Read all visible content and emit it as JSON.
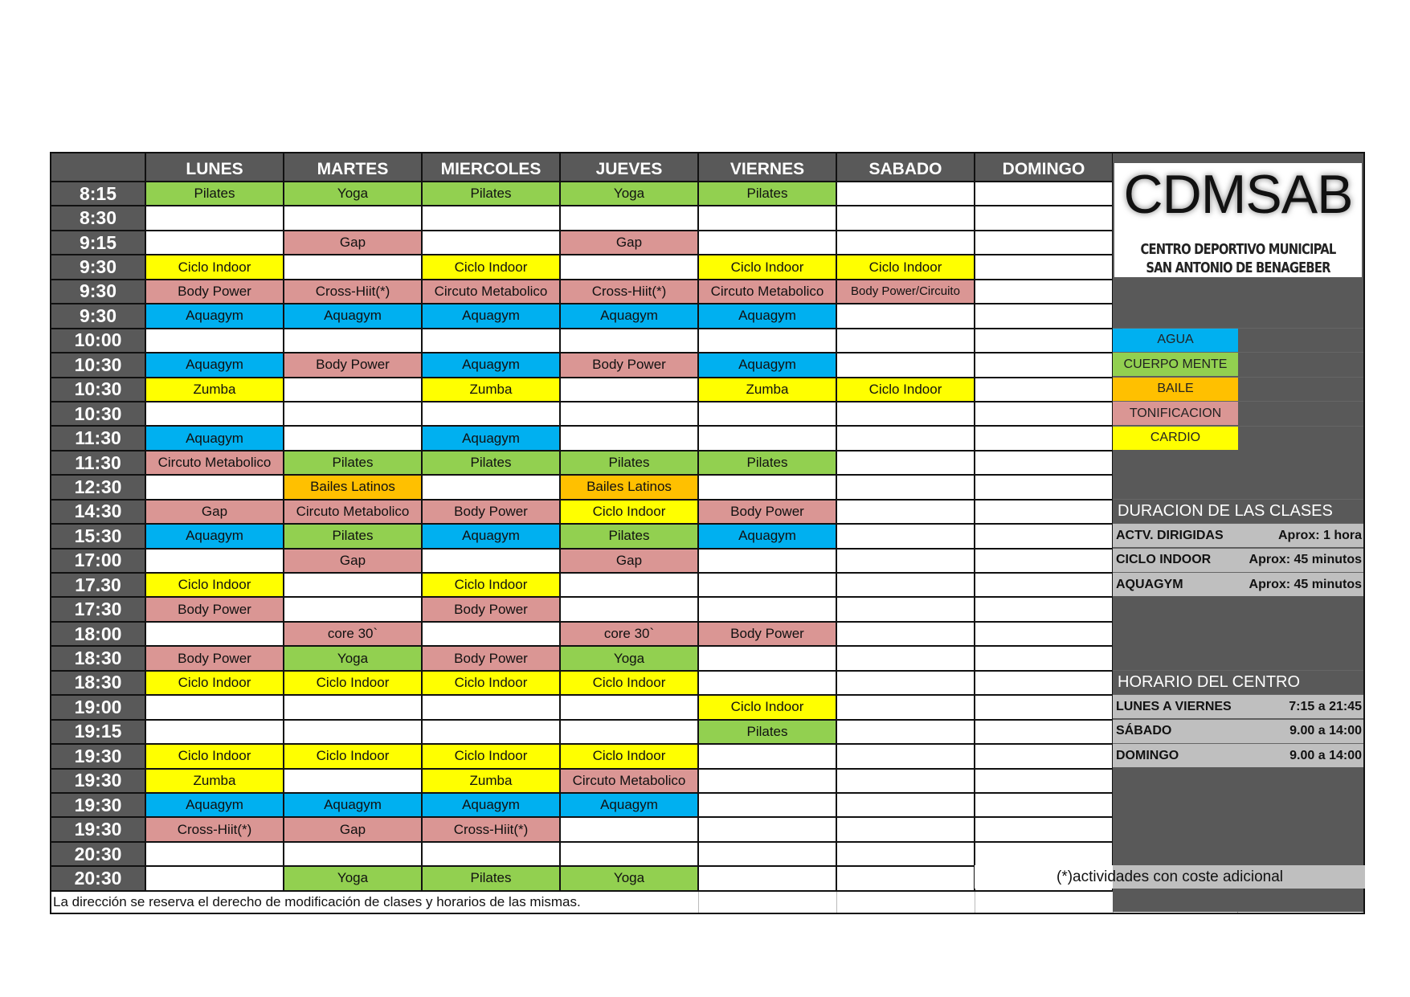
{
  "header": {
    "days": [
      "LUNES",
      "MARTES",
      "MIERCOLES",
      "JUEVES",
      "VIERNES",
      "SABADO",
      "DOMINGO"
    ]
  },
  "categories": {
    "A": {
      "label": "AGUA",
      "color": "#00b0f0"
    },
    "C": {
      "label": "CUERPO MENTE",
      "color": "#92d050"
    },
    "B": {
      "label": "BAILE",
      "color": "#ffc000"
    },
    "T": {
      "label": "TONIFICACION",
      "color": "#da9694"
    },
    "K": {
      "label": "CARDIO",
      "color": "#ffff00"
    }
  },
  "legend_order": [
    "A",
    "C",
    "B",
    "T",
    "K"
  ],
  "schedule": [
    {
      "time": "8:15",
      "cells": [
        [
          "Pilates",
          "C"
        ],
        [
          "Yoga",
          "C"
        ],
        [
          "Pilates",
          "C"
        ],
        [
          "Yoga",
          "C"
        ],
        [
          "Pilates",
          "C"
        ],
        [
          "",
          ""
        ],
        [
          "",
          ""
        ]
      ]
    },
    {
      "time": "8:30",
      "cells": [
        [
          "",
          ""
        ],
        [
          "",
          ""
        ],
        [
          "",
          ""
        ],
        [
          "",
          ""
        ],
        [
          "",
          ""
        ],
        [
          "",
          ""
        ],
        [
          "",
          ""
        ]
      ]
    },
    {
      "time": "9:15",
      "cells": [
        [
          "",
          ""
        ],
        [
          "Gap",
          "T"
        ],
        [
          "",
          ""
        ],
        [
          "Gap",
          "T"
        ],
        [
          "",
          ""
        ],
        [
          "",
          ""
        ],
        [
          "",
          ""
        ]
      ]
    },
    {
      "time": "9:30",
      "cells": [
        [
          "Ciclo Indoor",
          "K"
        ],
        [
          "",
          ""
        ],
        [
          "Ciclo Indoor",
          "K"
        ],
        [
          "",
          ""
        ],
        [
          "Ciclo Indoor",
          "K"
        ],
        [
          "Ciclo Indoor",
          "K"
        ],
        [
          "",
          ""
        ]
      ]
    },
    {
      "time": "9:30",
      "cells": [
        [
          "Body Power",
          "T"
        ],
        [
          "Cross-Hiit(*)",
          "T"
        ],
        [
          "Circuto Metabolico",
          "T"
        ],
        [
          "Cross-Hiit(*)",
          "T"
        ],
        [
          "Circuto Metabolico",
          "T"
        ],
        [
          "Body Power/Circuito",
          "T"
        ],
        [
          "",
          ""
        ]
      ]
    },
    {
      "time": "9:30",
      "cells": [
        [
          "Aquagym",
          "A"
        ],
        [
          "Aquagym",
          "A"
        ],
        [
          "Aquagym",
          "A"
        ],
        [
          "Aquagym",
          "A"
        ],
        [
          "Aquagym",
          "A"
        ],
        [
          "",
          ""
        ],
        [
          "",
          ""
        ]
      ]
    },
    {
      "time": "10:00",
      "cells": [
        [
          "",
          ""
        ],
        [
          "",
          ""
        ],
        [
          "",
          ""
        ],
        [
          "",
          ""
        ],
        [
          "",
          ""
        ],
        [
          "",
          ""
        ],
        [
          "",
          ""
        ]
      ]
    },
    {
      "time": "10:30",
      "cells": [
        [
          "Aquagym",
          "A"
        ],
        [
          "Body Power",
          "T"
        ],
        [
          "Aquagym",
          "A"
        ],
        [
          "Body Power",
          "T"
        ],
        [
          "Aquagym",
          "A"
        ],
        [
          "",
          ""
        ],
        [
          "",
          ""
        ]
      ]
    },
    {
      "time": "10:30",
      "cells": [
        [
          "Zumba",
          "K"
        ],
        [
          "",
          ""
        ],
        [
          "Zumba",
          "K"
        ],
        [
          "",
          ""
        ],
        [
          "Zumba",
          "K"
        ],
        [
          "Ciclo Indoor",
          "K"
        ],
        [
          "",
          ""
        ]
      ]
    },
    {
      "time": "10:30",
      "cells": [
        [
          "",
          ""
        ],
        [
          "",
          ""
        ],
        [
          "",
          ""
        ],
        [
          "",
          ""
        ],
        [
          "",
          ""
        ],
        [
          "",
          ""
        ],
        [
          "",
          ""
        ]
      ]
    },
    {
      "time": "11:30",
      "cells": [
        [
          "Aquagym",
          "A"
        ],
        [
          "",
          ""
        ],
        [
          "Aquagym",
          "A"
        ],
        [
          "",
          ""
        ],
        [
          "",
          ""
        ],
        [
          "",
          ""
        ],
        [
          "",
          ""
        ]
      ]
    },
    {
      "time": "11:30",
      "cells": [
        [
          "Circuto Metabolico",
          "T"
        ],
        [
          "Pilates",
          "C"
        ],
        [
          "Pilates",
          "C"
        ],
        [
          "Pilates",
          "C"
        ],
        [
          "Pilates",
          "C"
        ],
        [
          "",
          ""
        ],
        [
          "",
          ""
        ]
      ]
    },
    {
      "time": "12:30",
      "cells": [
        [
          "",
          ""
        ],
        [
          "Bailes Latinos",
          "B"
        ],
        [
          "",
          ""
        ],
        [
          "Bailes Latinos",
          "B"
        ],
        [
          "",
          ""
        ],
        [
          "",
          ""
        ],
        [
          "",
          ""
        ]
      ]
    },
    {
      "time": "14:30",
      "cells": [
        [
          "Gap",
          "T"
        ],
        [
          "Circuto Metabolico",
          "T"
        ],
        [
          "Body Power",
          "T"
        ],
        [
          "Ciclo Indoor",
          "K"
        ],
        [
          "Body Power",
          "T"
        ],
        [
          "",
          ""
        ],
        [
          "",
          ""
        ]
      ]
    },
    {
      "time": "15:30",
      "cells": [
        [
          "Aquagym",
          "A"
        ],
        [
          "Pilates",
          "C"
        ],
        [
          "Aquagym",
          "A"
        ],
        [
          "Pilates",
          "C"
        ],
        [
          "Aquagym",
          "A"
        ],
        [
          "",
          ""
        ],
        [
          "",
          ""
        ]
      ]
    },
    {
      "time": "17:00",
      "cells": [
        [
          "",
          ""
        ],
        [
          "Gap",
          "T"
        ],
        [
          "",
          ""
        ],
        [
          "Gap",
          "T"
        ],
        [
          "",
          ""
        ],
        [
          "",
          ""
        ],
        [
          "",
          ""
        ]
      ]
    },
    {
      "time": "17.30",
      "cells": [
        [
          "Ciclo Indoor",
          "K"
        ],
        [
          "",
          ""
        ],
        [
          "Ciclo Indoor",
          "K"
        ],
        [
          "",
          ""
        ],
        [
          "",
          ""
        ],
        [
          "",
          ""
        ],
        [
          "",
          ""
        ]
      ]
    },
    {
      "time": "17:30",
      "cells": [
        [
          "Body Power",
          "T"
        ],
        [
          "",
          ""
        ],
        [
          "Body Power",
          "T"
        ],
        [
          "",
          ""
        ],
        [
          "",
          ""
        ],
        [
          "",
          ""
        ],
        [
          "",
          ""
        ]
      ]
    },
    {
      "time": "18:00",
      "cells": [
        [
          "",
          ""
        ],
        [
          "core 30`",
          "T"
        ],
        [
          "",
          ""
        ],
        [
          "core 30`",
          "T"
        ],
        [
          "Body Power",
          "T"
        ],
        [
          "",
          ""
        ],
        [
          "",
          ""
        ]
      ]
    },
    {
      "time": "18:30",
      "cells": [
        [
          "Body Power",
          "T"
        ],
        [
          "Yoga",
          "C"
        ],
        [
          "Body Power",
          "T"
        ],
        [
          "Yoga",
          "C"
        ],
        [
          "",
          ""
        ],
        [
          "",
          ""
        ],
        [
          "",
          ""
        ]
      ]
    },
    {
      "time": "18:30",
      "cells": [
        [
          "Ciclo Indoor",
          "K"
        ],
        [
          "Ciclo Indoor",
          "K"
        ],
        [
          "Ciclo Indoor",
          "K"
        ],
        [
          "Ciclo Indoor",
          "K"
        ],
        [
          "",
          ""
        ],
        [
          "",
          ""
        ],
        [
          "",
          ""
        ]
      ]
    },
    {
      "time": "19:00",
      "cells": [
        [
          "",
          ""
        ],
        [
          "",
          ""
        ],
        [
          "",
          ""
        ],
        [
          "",
          ""
        ],
        [
          "Ciclo Indoor",
          "K"
        ],
        [
          "",
          ""
        ],
        [
          "",
          ""
        ]
      ]
    },
    {
      "time": "19:15",
      "cells": [
        [
          "",
          ""
        ],
        [
          "",
          ""
        ],
        [
          "",
          ""
        ],
        [
          "",
          ""
        ],
        [
          "Pilates",
          "C"
        ],
        [
          "",
          ""
        ],
        [
          "",
          ""
        ]
      ]
    },
    {
      "time": "19:30",
      "cells": [
        [
          "Ciclo Indoor",
          "K"
        ],
        [
          "Ciclo Indoor",
          "K"
        ],
        [
          "Ciclo Indoor",
          "K"
        ],
        [
          "Ciclo Indoor",
          "K"
        ],
        [
          "",
          ""
        ],
        [
          "",
          ""
        ],
        [
          "",
          ""
        ]
      ]
    },
    {
      "time": "19:30",
      "cells": [
        [
          "Zumba",
          "K"
        ],
        [
          "",
          ""
        ],
        [
          "Zumba",
          "K"
        ],
        [
          "Circuto Metabolico",
          "T"
        ],
        [
          "",
          ""
        ],
        [
          "",
          ""
        ],
        [
          "",
          ""
        ]
      ]
    },
    {
      "time": "19:30",
      "cells": [
        [
          "Aquagym",
          "A"
        ],
        [
          "Aquagym",
          "A"
        ],
        [
          "Aquagym",
          "A"
        ],
        [
          "Aquagym",
          "A"
        ],
        [
          "",
          ""
        ],
        [
          "",
          ""
        ],
        [
          "",
          ""
        ]
      ]
    },
    {
      "time": "19:30",
      "cells": [
        [
          "Cross-Hiit(*)",
          "T"
        ],
        [
          "Gap",
          "T"
        ],
        [
          "Cross-Hiit(*)",
          "T"
        ],
        [
          "",
          ""
        ],
        [
          "",
          ""
        ],
        [
          "",
          ""
        ],
        [
          "",
          ""
        ]
      ]
    },
    {
      "time": "20:30",
      "cells": [
        [
          "",
          ""
        ],
        [
          "",
          ""
        ],
        [
          "",
          ""
        ],
        [
          "",
          ""
        ],
        [
          "",
          ""
        ],
        [
          "",
          ""
        ],
        [
          "",
          ""
        ]
      ]
    },
    {
      "time": "20:30",
      "cells": [
        [
          "",
          ""
        ],
        [
          "Yoga",
          "C"
        ],
        [
          "Pilates",
          "C"
        ],
        [
          "Yoga",
          "C"
        ],
        [
          "",
          ""
        ],
        [
          "",
          ""
        ],
        [
          "",
          ""
        ]
      ]
    }
  ],
  "footer": {
    "disclaimer": "La dirección se reserva el derecho de modificación de clases y horarios de las mismas.",
    "note": "(*)actividades con coste adicional"
  },
  "logo": {
    "name": "CDMSAB",
    "line1": "CENTRO DEPORTIVO MUNICIPAL",
    "line2": "SAN ANTONIO DE BENAGEBER"
  },
  "duration": {
    "title": "DURACION DE LAS CLASES",
    "items": [
      {
        "label": "ACTV. DIRIGIDAS",
        "value": "Aprox:  1 hora"
      },
      {
        "label": "CICLO INDOOR",
        "value": "Aprox: 45 minutos"
      },
      {
        "label": "AQUAGYM",
        "value": "Aprox: 45 minutos"
      }
    ]
  },
  "hours": {
    "title": "HORARIO DEL CENTRO",
    "items": [
      {
        "label": "LUNES A VIERNES",
        "value": "7:15 a 21:45"
      },
      {
        "label": "SÁBADO",
        "value": "9.00 a 14:00"
      },
      {
        "label": "DOMINGO",
        "value": "9.00 a 14:00"
      }
    ]
  }
}
